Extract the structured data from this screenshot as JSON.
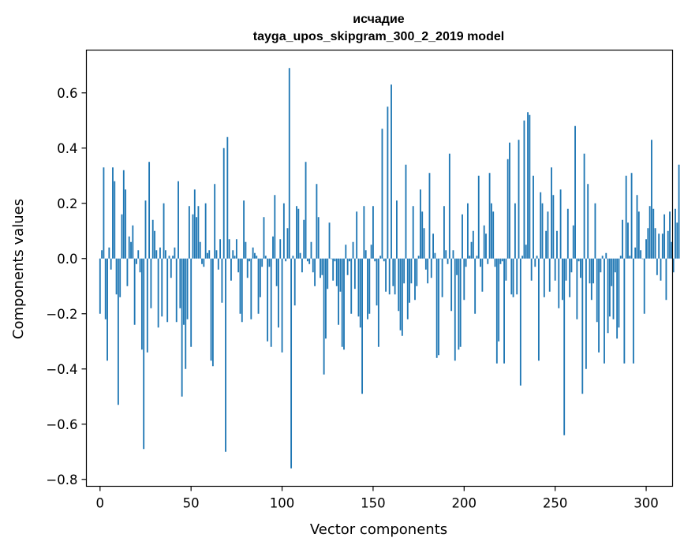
{
  "chart_data": {
    "type": "bar",
    "title": "исчадие",
    "subtitle": "tayga_upos_skipgram_300_2_2019 model",
    "xlabel": "Vector components",
    "ylabel": "Components values",
    "xlim": [
      -7.5,
      314.5
    ],
    "ylim": [
      -0.825,
      0.755
    ],
    "x_ticks": [
      0,
      50,
      100,
      150,
      200,
      250,
      300
    ],
    "y_ticks": [
      -0.8,
      -0.6,
      -0.4,
      -0.2,
      0.0,
      0.2,
      0.4,
      0.6
    ],
    "y_tick_labels": [
      "−0.8",
      "−0.6",
      "−0.4",
      "−0.2",
      "0.0",
      "0.2",
      "0.4",
      "0.6"
    ],
    "bar_color": "#1f77b4",
    "grid": false,
    "values": [
      -0.2,
      0.03,
      0.33,
      -0.22,
      -0.37,
      0.04,
      -0.04,
      0.33,
      0.28,
      -0.13,
      -0.53,
      -0.14,
      0.16,
      0.32,
      0.25,
      -0.1,
      0.08,
      0.06,
      0.12,
      -0.24,
      -0.02,
      0.03,
      -0.05,
      -0.33,
      -0.69,
      0.21,
      -0.34,
      0.35,
      -0.18,
      0.14,
      0.1,
      0.03,
      -0.25,
      0.04,
      -0.21,
      0.2,
      0.03,
      -0.23,
      0.01,
      -0.07,
      0.01,
      0.04,
      -0.23,
      0.28,
      -0.18,
      -0.5,
      -0.24,
      -0.4,
      -0.22,
      0.19,
      -0.32,
      0.16,
      0.25,
      0.15,
      0.19,
      0.06,
      -0.02,
      -0.03,
      0.2,
      0.02,
      0.03,
      -0.37,
      -0.39,
      0.27,
      0.03,
      -0.04,
      0.07,
      -0.16,
      0.4,
      -0.7,
      0.44,
      0.07,
      -0.08,
      0.03,
      0.01,
      0.07,
      -0.05,
      -0.2,
      -0.23,
      0.21,
      0.06,
      -0.07,
      -0.01,
      -0.22,
      0.04,
      0.02,
      0.01,
      -0.2,
      -0.14,
      -0.03,
      0.15,
      0.01,
      -0.3,
      -0.03,
      -0.32,
      0.08,
      0.23,
      -0.1,
      -0.25,
      0.07,
      -0.34,
      0.2,
      -0.01,
      0.11,
      0.69,
      -0.76,
      0.01,
      -0.17,
      0.19,
      0.18,
      0.02,
      -0.05,
      0.14,
      0.35,
      -0.01,
      -0.02,
      0.06,
      -0.05,
      -0.1,
      0.27,
      0.15,
      -0.07,
      -0.06,
      -0.42,
      -0.29,
      -0.11,
      0.13,
      0.0,
      -0.08,
      -0.01,
      -0.1,
      -0.24,
      -0.12,
      -0.32,
      -0.33,
      0.05,
      -0.06,
      -0.01,
      -0.2,
      0.06,
      -0.11,
      0.17,
      -0.21,
      -0.25,
      -0.49,
      0.19,
      0.03,
      -0.22,
      -0.2,
      0.05,
      0.19,
      -0.01,
      -0.17,
      -0.32,
      0.01,
      0.47,
      -0.01,
      -0.12,
      0.55,
      -0.13,
      0.63,
      -0.1,
      -0.13,
      0.21,
      -0.19,
      -0.26,
      -0.28,
      -0.09,
      0.34,
      -0.22,
      -0.16,
      -0.09,
      0.19,
      -0.15,
      -0.1,
      0.01,
      0.25,
      0.17,
      0.11,
      -0.04,
      -0.09,
      0.31,
      -0.07,
      0.09,
      0.02,
      -0.36,
      -0.35,
      0.0,
      -0.14,
      0.19,
      0.03,
      -0.02,
      0.38,
      -0.19,
      0.03,
      -0.37,
      -0.06,
      -0.33,
      -0.32,
      0.16,
      -0.15,
      -0.03,
      0.2,
      0.01,
      0.06,
      0.1,
      -0.2,
      0.01,
      0.3,
      -0.03,
      -0.12,
      0.12,
      0.09,
      -0.02,
      0.31,
      0.2,
      0.17,
      -0.03,
      -0.38,
      -0.3,
      -0.02,
      -0.01,
      -0.38,
      -0.08,
      0.36,
      0.42,
      -0.13,
      -0.14,
      0.2,
      -0.13,
      0.43,
      -0.46,
      0.01,
      0.5,
      0.05,
      0.53,
      0.52,
      -0.08,
      0.3,
      -0.03,
      0.01,
      -0.37,
      0.24,
      0.2,
      -0.14,
      0.1,
      0.17,
      -0.12,
      0.33,
      0.23,
      -0.08,
      0.1,
      -0.18,
      0.25,
      -0.15,
      -0.64,
      -0.08,
      0.18,
      -0.14,
      -0.05,
      0.12,
      0.48,
      -0.22,
      -0.01,
      -0.07,
      -0.49,
      0.38,
      -0.4,
      0.27,
      -0.09,
      -0.15,
      -0.09,
      0.2,
      -0.23,
      -0.34,
      -0.05,
      0.01,
      -0.38,
      0.02,
      -0.27,
      -0.21,
      -0.1,
      -0.22,
      -0.05,
      -0.29,
      -0.25,
      0.01,
      0.14,
      -0.38,
      0.3,
      0.13,
      0.01,
      0.31,
      -0.38,
      0.04,
      0.23,
      0.17,
      0.03,
      0.0,
      -0.2,
      0.07,
      0.11,
      0.19,
      0.43,
      0.18,
      0.11,
      -0.06,
      0.09,
      -0.08,
      0.09,
      0.16,
      -0.15,
      0.1,
      0.17,
      0.06,
      -0.05,
      0.18,
      0.13,
      0.34
    ]
  }
}
